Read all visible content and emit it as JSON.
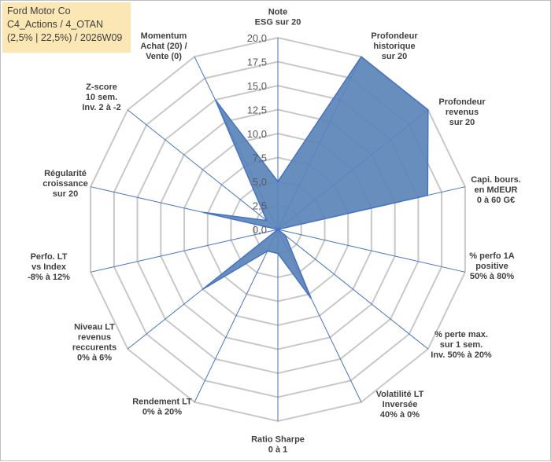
{
  "title_block": {
    "line1": "Ford Motor Co",
    "line2": "C4_Actions / 4_OTAN",
    "line3": "(2,5% | 22,5%) / 2026W09"
  },
  "colors": {
    "fill": "#5b84b9",
    "stroke": "#4472c4",
    "grid": "#c8c8c8",
    "spoke": "#4472c4",
    "title_bg": "#fbe7b4"
  },
  "chart_data": {
    "type": "radar",
    "title": "Ford Motor Co C4_Actions / 4_OTAN (2,5% | 22,5%) / 2026W09",
    "rlim": [
      0,
      20
    ],
    "ticks": [
      "0,0",
      "2,5",
      "5,0",
      "7,5",
      "10,0",
      "12,5",
      "15,0",
      "17,5",
      "20,0"
    ],
    "axes": [
      {
        "label": [
          "Note",
          "ESG sur 20"
        ],
        "value": 5.0
      },
      {
        "label": [
          "Profondeur",
          "historique",
          "sur 20"
        ],
        "value": 20.0
      },
      {
        "label": [
          "Profondeur",
          "revenus",
          "sur 20"
        ],
        "value": 20.0
      },
      {
        "label": [
          "Capi. bours.",
          "en MdEUR",
          "0 à 60 G€"
        ],
        "value": 16.0
      },
      {
        "label": [
          "% perfo 1A",
          "positive",
          "50% à 80%"
        ],
        "value": 0.0
      },
      {
        "label": [
          "% perte max.",
          "sur 1 sem.",
          "Inv. 50% à 20%"
        ],
        "value": 1.0
      },
      {
        "label": [
          "Volatilité LT",
          "Inversée",
          "40% à 0%"
        ],
        "value": 8.0
      },
      {
        "label": [
          "Ratio Sharpe",
          "0 à 1"
        ],
        "value": 2.5
      },
      {
        "label": [
          "Rendement LT",
          "0% à 20%"
        ],
        "value": 2.5
      },
      {
        "label": [
          "Niveau LT",
          "revenus",
          "reccurents",
          "0% à 6%"
        ],
        "value": 10.0
      },
      {
        "label": [
          "Perfo. LT",
          "vs Index",
          "-8% à 12%"
        ],
        "value": 0.0
      },
      {
        "label": [
          "Régularité",
          "croissance",
          "sur 20"
        ],
        "value": 8.0
      },
      {
        "label": [
          "Z-score",
          "10 sem.",
          "Inv. 2 à -2"
        ],
        "value": 1.5
      },
      {
        "label": [
          "Momentum",
          "Achat (20) /",
          "Vente (0)"
        ],
        "value": 15.0
      }
    ]
  }
}
